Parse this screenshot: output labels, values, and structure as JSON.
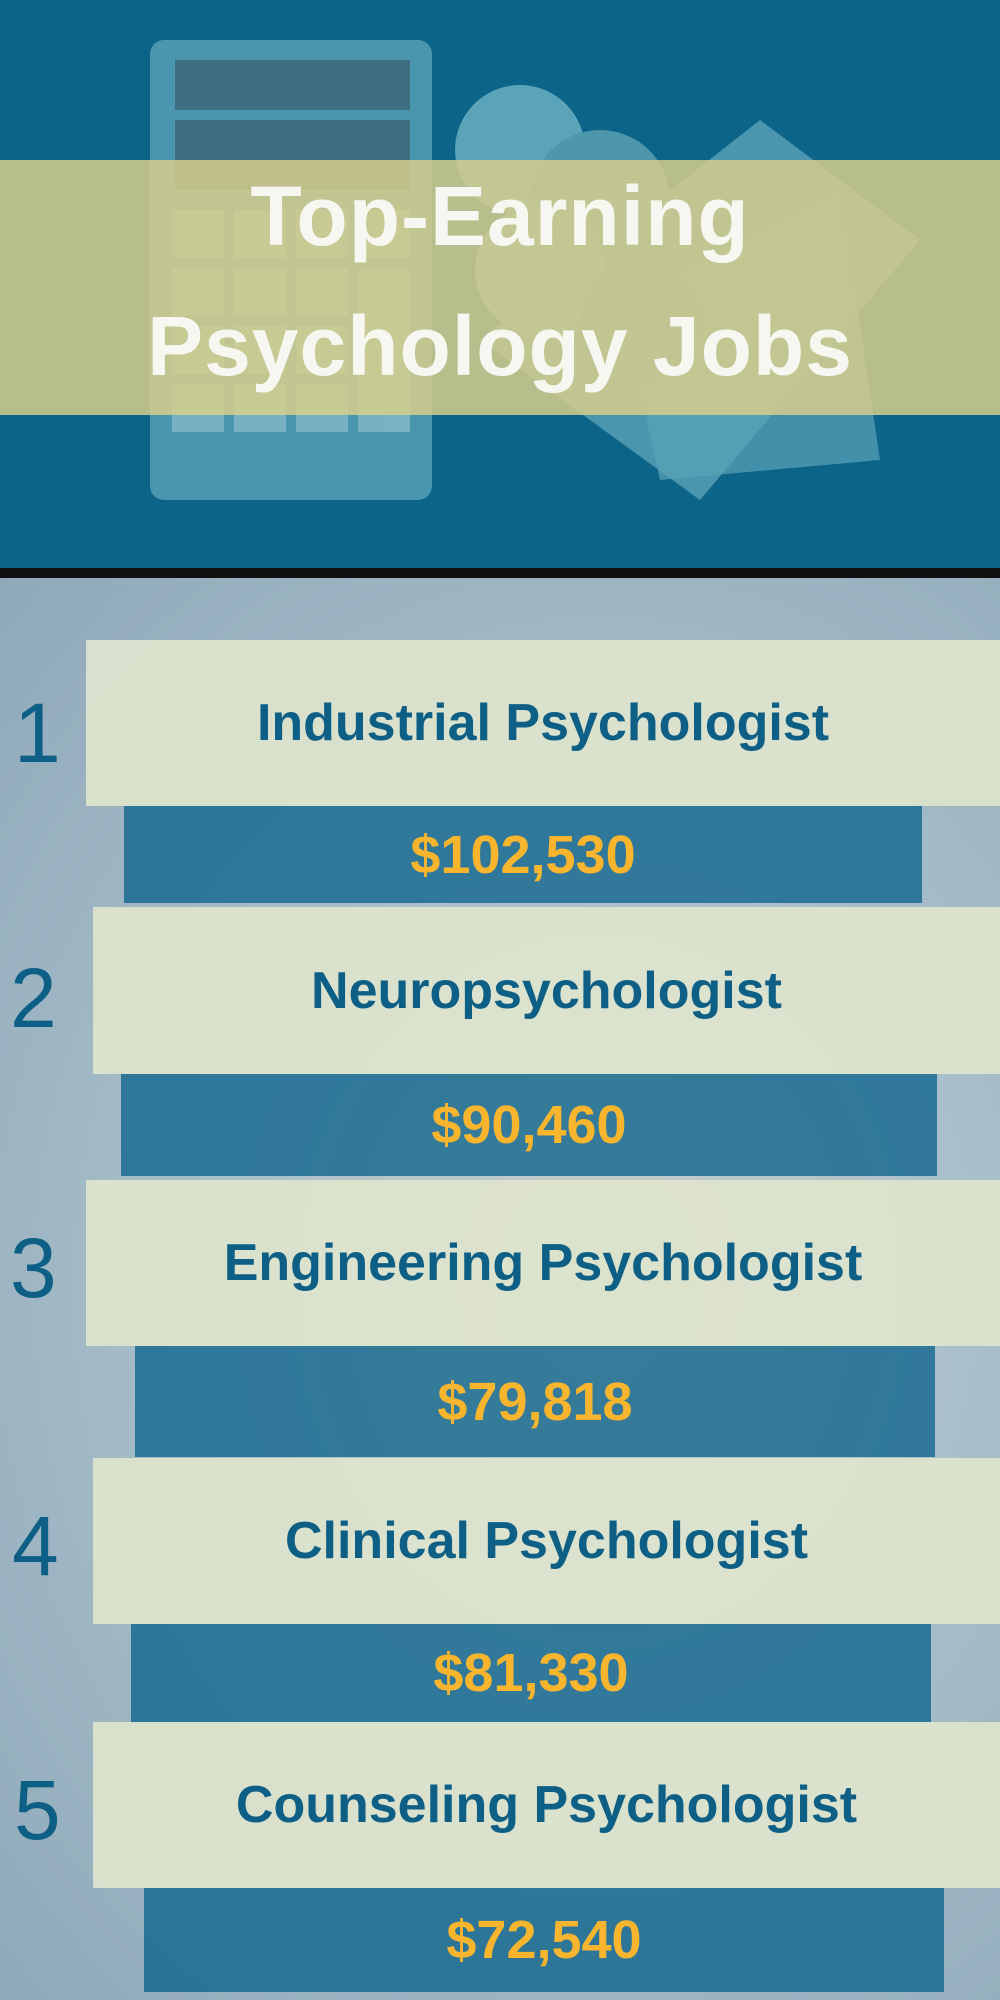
{
  "header": {
    "title_line1": "Top-Earning",
    "title_line2": "Psychology Jobs"
  },
  "colors": {
    "header_bg": "#0c6489",
    "band": "#d6ce8c",
    "job_text": "#0e5f86",
    "salary_text": "#f9b52e"
  },
  "jobs": [
    {
      "rank": "1",
      "title": "Industrial Psychologist",
      "salary": "$102,530"
    },
    {
      "rank": "2",
      "title": "Neuropsychologist",
      "salary": "$90,460"
    },
    {
      "rank": "3",
      "title": "Engineering Psychologist",
      "salary": "$79,818"
    },
    {
      "rank": "4",
      "title": "Clinical Psychologist",
      "salary": "$81,330"
    },
    {
      "rank": "5",
      "title": "Counseling Psychologist",
      "salary": "$72,540"
    }
  ]
}
